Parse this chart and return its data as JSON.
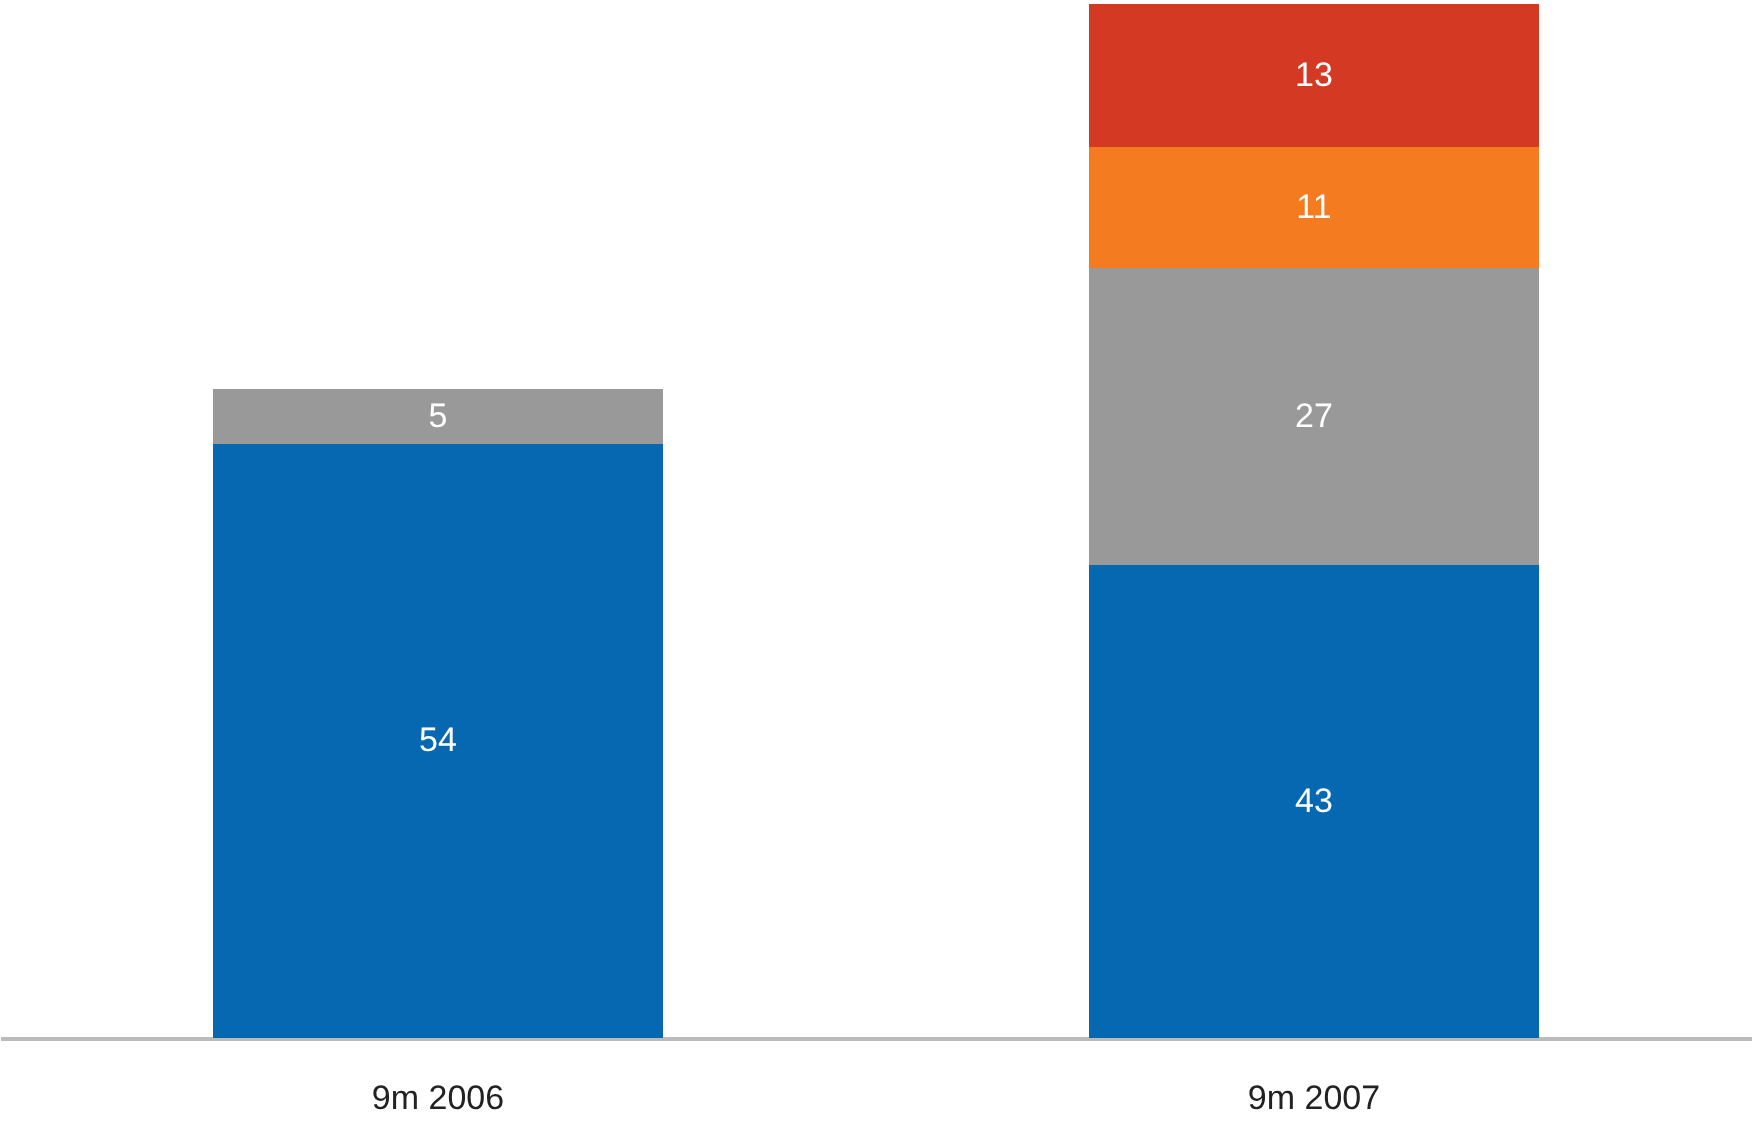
{
  "chart_data": {
    "type": "bar",
    "stacked": true,
    "data_labels": true,
    "categories": [
      "9m 2006",
      "9m 2007"
    ],
    "series": [
      {
        "color": "#0568b0",
        "values": [
          54,
          43
        ]
      },
      {
        "color": "#999999",
        "values": [
          5,
          27
        ]
      },
      {
        "color": "#f47b20",
        "values": [
          null,
          11
        ]
      },
      {
        "color": "#d43a23",
        "values": [
          null,
          13
        ]
      }
    ]
  }
}
